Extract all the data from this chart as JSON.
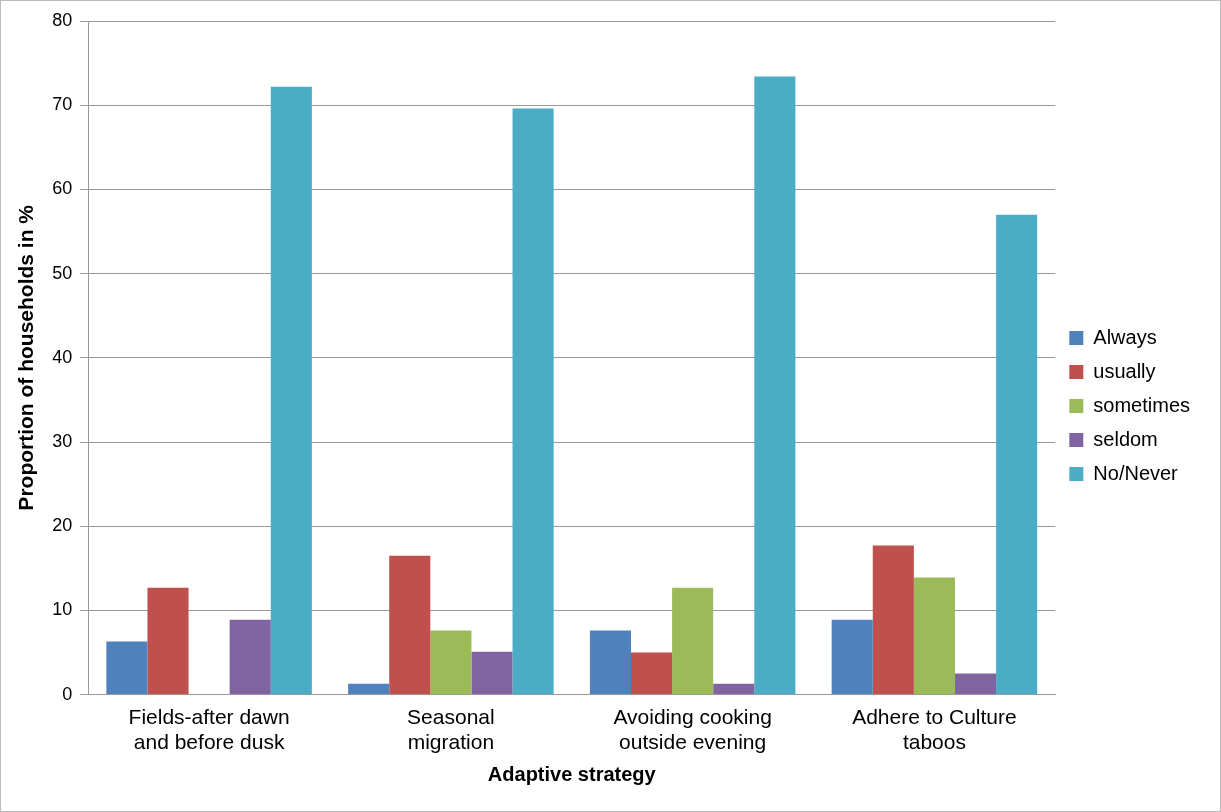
{
  "chart_data": {
    "type": "bar",
    "xlabel": "Adaptive strategy",
    "ylabel": "Proportion of households in %",
    "categories": [
      [
        "Fields-after dawn",
        "and before dusk"
      ],
      [
        "Seasonal",
        "migration"
      ],
      [
        "Avoiding cooking",
        "outside evening"
      ],
      [
        "Adhere to Culture",
        "taboos"
      ]
    ],
    "series": [
      {
        "name": "Always",
        "color": "#4f81bd",
        "values": [
          6.3,
          1.3,
          7.6,
          8.9
        ]
      },
      {
        "name": "usually",
        "color": "#c0504d",
        "values": [
          12.7,
          16.5,
          5.0,
          17.7
        ]
      },
      {
        "name": "sometimes",
        "color": "#9bbb59",
        "values": [
          0,
          7.6,
          12.7,
          13.9
        ]
      },
      {
        "name": "seldom",
        "color": "#8064a2",
        "values": [
          8.9,
          5.1,
          1.3,
          2.5
        ]
      },
      {
        "name": "No/Never",
        "color": "#4bacc6",
        "values": [
          72.2,
          69.6,
          73.4,
          57.0
        ]
      }
    ],
    "ylim": [
      0,
      80
    ],
    "yticks": [
      0,
      10,
      20,
      30,
      40,
      50,
      60,
      70,
      80
    ],
    "grid": "y",
    "legend": "right"
  }
}
